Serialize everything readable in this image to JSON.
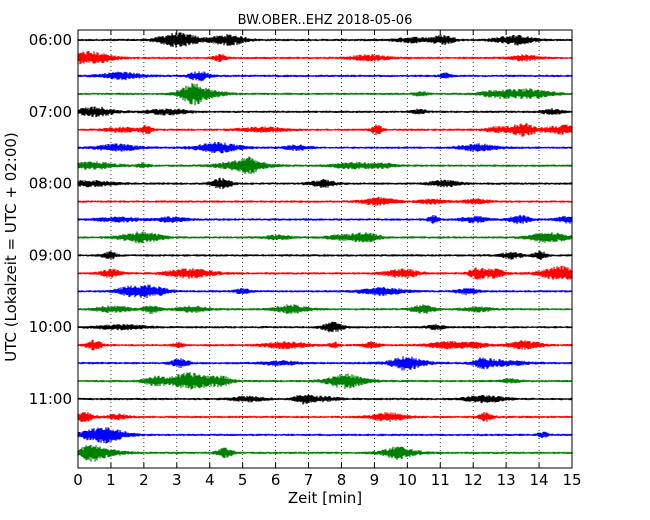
{
  "chart_data": {
    "type": "line",
    "title": "BW.OBER..EHZ 2018-05-06",
    "xlabel": "Zeit  [min]",
    "ylabel": "UTC (Lokalzeit = UTC + 02:00)",
    "xlim": [
      0,
      15
    ],
    "x_ticks": [
      "0",
      "1",
      "2",
      "3",
      "4",
      "5",
      "6",
      "7",
      "8",
      "9",
      "10",
      "11",
      "12",
      "13",
      "14",
      "15"
    ],
    "y_ticks": [
      "06:00",
      "07:00",
      "08:00",
      "09:00",
      "10:00",
      "11:00"
    ],
    "grid": {
      "x": true,
      "y": false,
      "style": "dotted"
    },
    "trace_interval_min": 15,
    "colors": [
      "#000000",
      "#ff0000",
      "#0000ff",
      "#008000"
    ],
    "series": [
      {
        "start": "06:00"
      },
      {
        "start": "06:15"
      },
      {
        "start": "06:30"
      },
      {
        "start": "06:45"
      },
      {
        "start": "07:00"
      },
      {
        "start": "07:15"
      },
      {
        "start": "07:30"
      },
      {
        "start": "07:45"
      },
      {
        "start": "08:00"
      },
      {
        "start": "08:15"
      },
      {
        "start": "08:30"
      },
      {
        "start": "08:45"
      },
      {
        "start": "09:00"
      },
      {
        "start": "09:15"
      },
      {
        "start": "09:30"
      },
      {
        "start": "09:45"
      },
      {
        "start": "10:00"
      },
      {
        "start": "10:15"
      },
      {
        "start": "10:30"
      },
      {
        "start": "10:45"
      },
      {
        "start": "11:00"
      },
      {
        "start": "11:15"
      },
      {
        "start": "11:30"
      },
      {
        "start": "11:45"
      }
    ]
  }
}
